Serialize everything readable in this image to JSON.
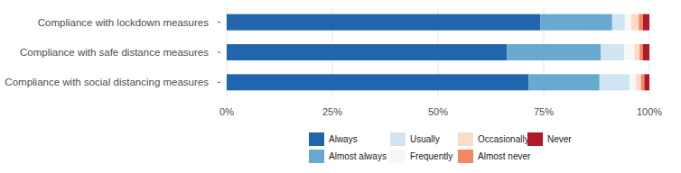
{
  "chart_data": {
    "type": "bar",
    "orientation": "horizontal",
    "stacked": true,
    "grid": true,
    "legend": "bottom",
    "categories": [
      "Compliance with lockdown measures",
      "Compliance with safe distance measures",
      "Compliance with social distancing measures"
    ],
    "xlim": [
      0,
      100
    ],
    "xticks": [
      {
        "value": 0,
        "label": "0%"
      },
      {
        "value": 25,
        "label": "25%"
      },
      {
        "value": 50,
        "label": "50%"
      },
      {
        "value": 75,
        "label": "75%"
      },
      {
        "value": 100,
        "label": "100%"
      }
    ],
    "series": [
      {
        "name": "Always",
        "color": "#2166ac",
        "values": [
          74.2,
          66.3,
          71.4
        ]
      },
      {
        "name": "Almost always",
        "color": "#67a9cf",
        "values": [
          17.0,
          22.2,
          16.8
        ]
      },
      {
        "name": "Usually",
        "color": "#d1e5f0",
        "values": [
          3.0,
          5.5,
          7.1
        ]
      },
      {
        "name": "Frequently",
        "color": "#f7f7f7",
        "values": [
          1.5,
          2.5,
          1.5
        ]
      },
      {
        "name": "Occasionally",
        "color": "#fddbc7",
        "values": [
          1.8,
          1.2,
          1.2
        ]
      },
      {
        "name": "Almost never",
        "color": "#ef8a62",
        "values": [
          1.0,
          0.8,
          0.8
        ]
      },
      {
        "name": "Never",
        "color": "#b2182b",
        "values": [
          1.5,
          1.5,
          1.2
        ]
      }
    ]
  }
}
